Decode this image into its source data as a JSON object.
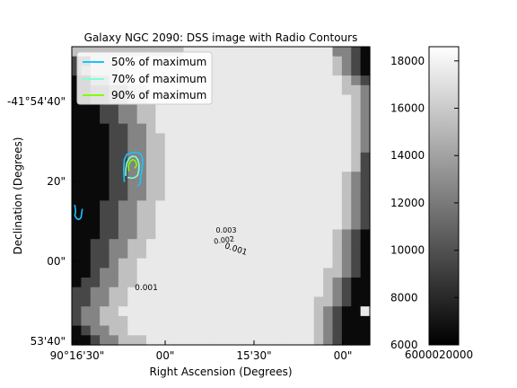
{
  "chart_data": {
    "type": "heatmap",
    "title": "Galaxy NGC 2090: DSS image with Radio Contours",
    "xlabel": "Right Ascension (Degrees)",
    "ylabel": "Declination (Degrees)",
    "x_tick_labels": [
      "90°16'30\"",
      "00\"",
      "15'30\"",
      "00\""
    ],
    "y_tick_labels": [
      "-41°54'40\"",
      "20\"",
      "00\"",
      "53'40\""
    ],
    "colorbar": {
      "min": 6000,
      "max": 18600,
      "ticks": [
        6000,
        8000,
        10000,
        12000,
        14000,
        16000,
        18000
      ],
      "tick_labels": [
        "6000",
        "8000",
        "10000",
        "12000",
        "14000",
        "16000",
        "18000"
      ],
      "bottom_overlap_label": "6000020000",
      "colormap": "gray"
    },
    "image": {
      "rows": 31,
      "cols": 31,
      "grid": [
        "DDDDDDDDDDDDEEEEEEEEEEEEEEEECCBA",
        "BBDDDEEEEEEEEEEEEEEEEEEEEEEEDCBA",
        "BCDDDEEEEEEEEEEEEEEEEEEEEEEEDCBA",
        "AACCDDEEEEEEEEEEEEEEEEEEEEEEEDCB",
        "AABBCCDDEEEEEEEEEEEEEEEEEEEEEDDC",
        "AABBCCDDEEEEEEEEEEEEEEEEEEEEEEDC",
        "AAABBCCDDEEEEEEEEEEEEEEEEEEEEEDC",
        "AAABBCCDDEEEEEEEEEEEEEEEEEEEEEDC",
        "AAAABBCCDEEEEEEEEEEEEEEEEEEEEEDC",
        "AAAABBCCDDEEEEEEEEEEEEEEEEEEEEDC",
        "AAAABBCCDDEEEEEEEEEEEEEEEEEEEEDC",
        "AAAABBCCDDEEEEEEEEEEEEEEEEEEEEDB",
        "AAAABBCCDDEEEEEEEEEEEEEEEEEEEEDB",
        "AAAABBCCDDEEEEEEEEEEEEEEEEEEEDCB",
        "AAAABBCCDDEEEEEEEEEEEEEEEEEEEDCB",
        "AAAABBCCDDEEEEEEEEEEEEEEEEEEEDCB",
        "AAABBCCDDEEEEEEEEEEEEEEEEEEEEDCB",
        "AAABBCCDDEEEEEEEEEEEEEEEEEEEEDCB",
        "AAABBCCDDEEEEEEEEEEEEEEEEEEEEDCB",
        "AAABBCCDDEEEEEEEEEEEEEEEEEEEDCBA",
        "AABBCCDDEEEEEEEEEEEEEEEEEEEEDCBA",
        "AABBCCDDEEEEEEEEEEEEEEEEEEEEDCBA",
        "AABBCDDEEEEEEEEEEEEEEEEEEEEEDCBA",
        "AABCCDDEEEEEEEEEEEEEEEEEEEEDDCBA",
        "ABBCCDDEEEEEEEEEEEEEEEEEEEEDCBAA",
        "BBCCDDEEEEEEEEEEEEEEEEEEEEEDCBAA",
        "BBCCDDEEEEEEEEEEEEEEEEEEEEDDCBAA",
        "BCCDDEEEEEEEEEEEEEEEEEEEEEDCBAAE",
        "BCCDDDEEEEEEEEEEEEEEEEEEEEDCBAAA",
        "ABCCDDEEEEEEEEEEEEEEEEEEEEDCBAAA",
        "AABCCDDDEEEEEEEEEEEEEEEEEEDCBAAA"
      ],
      "levels": {
        "A": 6500,
        "B": 9500,
        "C": 12500,
        "D": 15500,
        "E": 17500
      }
    },
    "legend": {
      "position": "top-left",
      "entries": [
        {
          "label": "50% of maximum",
          "color": "#19c3ff"
        },
        {
          "label": "70% of maximum",
          "color": "#7fffd4"
        },
        {
          "label": "90% of maximum",
          "color": "#7fff00"
        }
      ]
    },
    "contour_labels": [
      {
        "text": "0.001",
        "color": "#19c3ff"
      },
      {
        "text": "0.002",
        "color": "#7fffd4"
      },
      {
        "text": "0.003",
        "color": "#7fff00"
      },
      {
        "text": "0.001",
        "color": "#19c3ff"
      }
    ],
    "contours": [
      {
        "level": "50%",
        "color": "#19c3ff",
        "points": [
          [
            -30.5,
            14.0
          ],
          [
            -30.2,
            12.5
          ],
          [
            -30.5,
            11.5
          ],
          [
            -30.0,
            10.8
          ],
          [
            -29.4,
            10.5
          ],
          [
            -28.8,
            10.6
          ],
          [
            -28.4,
            11.0
          ],
          [
            -28.0,
            13.0
          ]
        ]
      },
      {
        "level": "50%",
        "color": "#19c3ff",
        "points": [
          [
            -13.8,
            20.0
          ],
          [
            -14.0,
            23.0
          ],
          [
            -13.8,
            25.5
          ],
          [
            -12.9,
            26.8
          ],
          [
            -11.3,
            27.2
          ],
          [
            -9.5,
            27.3
          ],
          [
            -8.2,
            26.8
          ],
          [
            -7.6,
            25.5
          ],
          [
            -7.7,
            24.0
          ],
          [
            -7.9,
            22.5
          ],
          [
            -8.3,
            21.0
          ],
          [
            -8.4,
            19.5
          ],
          [
            -9.2,
            18.9
          ]
        ]
      },
      {
        "level": "70%",
        "color": "#7fffd4",
        "points": [
          [
            -13.3,
            21.5
          ],
          [
            -13.3,
            23.0
          ],
          [
            -13.0,
            24.5
          ],
          [
            -12.2,
            25.7
          ],
          [
            -11.2,
            26.3
          ],
          [
            -10.0,
            26.2
          ],
          [
            -9.2,
            25.4
          ],
          [
            -8.8,
            24.2
          ],
          [
            -8.9,
            22.8
          ],
          [
            -9.3,
            21.5
          ],
          [
            -10.2,
            21.0
          ],
          [
            -11.3,
            20.8
          ],
          [
            -12.5,
            21.0
          ]
        ]
      },
      {
        "level": "90%",
        "color": "#7fff00",
        "points": [
          [
            -12.3,
            22.7
          ],
          [
            -12.4,
            24.0
          ],
          [
            -11.8,
            25.0
          ],
          [
            -10.9,
            25.5
          ],
          [
            -10.0,
            25.1
          ],
          [
            -9.6,
            24.0
          ],
          [
            -10.2,
            23.4
          ]
        ]
      }
    ]
  }
}
